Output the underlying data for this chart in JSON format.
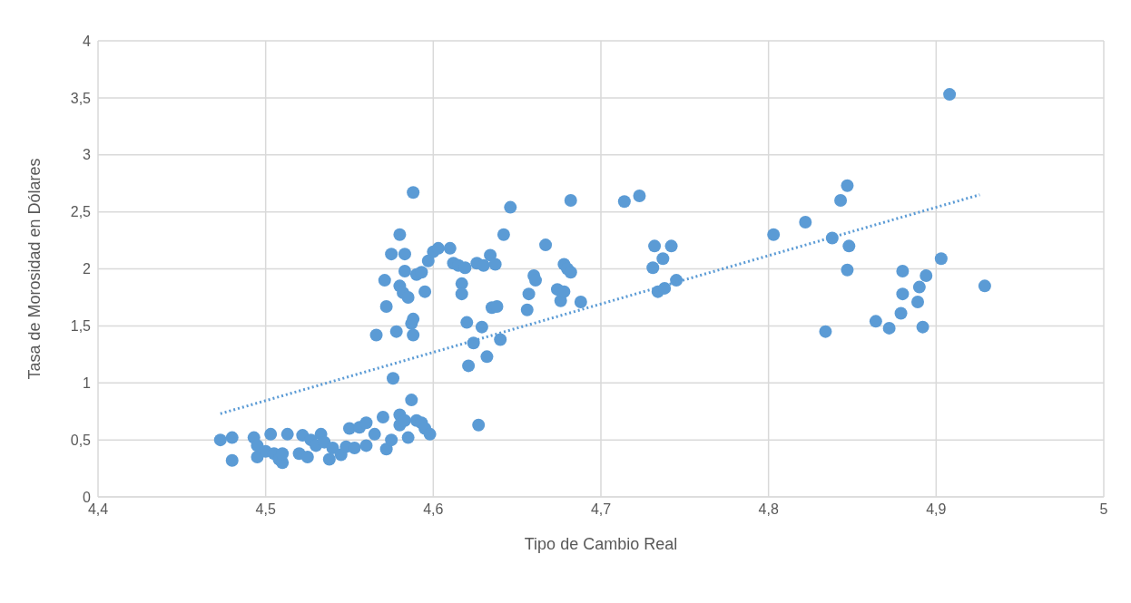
{
  "chart_data": {
    "type": "scatter",
    "xlabel": "Tipo de Cambio Real",
    "ylabel": "Tasa de Morosidad en Dólares",
    "xlim": [
      4.4,
      5
    ],
    "xticks": [
      {
        "value": 4.4,
        "label": "4,4"
      },
      {
        "value": 4.5,
        "label": "4,5"
      },
      {
        "value": 4.6,
        "label": "4,6"
      },
      {
        "value": 4.7,
        "label": "4,7"
      },
      {
        "value": 4.8,
        "label": "4,8"
      },
      {
        "value": 4.9,
        "label": "4,9"
      },
      5
    ],
    "ylim": [
      0,
      4
    ],
    "yticks": [
      0,
      {
        "value": 0.5,
        "label": "0,5"
      },
      1,
      {
        "value": 1.5,
        "label": "1,5"
      },
      2,
      {
        "value": 2.5,
        "label": "2,5"
      },
      3,
      {
        "value": 3.5,
        "label": "3,5"
      },
      4
    ],
    "grid": true,
    "legend": false,
    "series": [
      {
        "color": "#5b9bd5",
        "marker": "circle",
        "x": [
          4.473,
          4.48,
          4.48,
          4.493,
          4.495,
          4.495,
          4.5,
          4.503,
          4.505,
          4.508,
          4.51,
          4.51,
          4.513,
          4.52,
          4.522,
          4.525,
          4.527,
          4.53,
          4.533,
          4.535,
          4.538,
          4.54,
          4.545,
          4.548,
          4.55,
          4.553,
          4.556,
          4.56,
          4.56,
          4.565,
          4.57,
          4.572,
          4.575,
          4.58,
          4.58,
          4.583,
          4.585,
          4.587,
          4.59,
          4.593,
          4.595,
          4.598,
          4.627,
          4.576,
          4.566,
          4.571,
          4.572,
          4.575,
          4.578,
          4.58,
          4.58,
          4.582,
          4.583,
          4.583,
          4.585,
          4.587,
          4.588,
          4.588,
          4.588,
          4.59,
          4.593,
          4.595,
          4.597,
          4.6,
          4.603,
          4.61,
          4.612,
          4.615,
          4.617,
          4.617,
          4.619,
          4.62,
          4.621,
          4.624,
          4.626,
          4.629,
          4.63,
          4.632,
          4.634,
          4.635,
          4.637,
          4.638,
          4.64,
          4.642,
          4.646,
          4.656,
          4.657,
          4.66,
          4.661,
          4.667,
          4.674,
          4.676,
          4.678,
          4.678,
          4.68,
          4.682,
          4.682,
          4.688,
          4.714,
          4.723,
          4.731,
          4.732,
          4.734,
          4.737,
          4.738,
          4.742,
          4.745,
          4.803,
          4.822,
          4.838,
          4.843,
          4.847,
          4.848,
          4.847,
          4.834,
          4.864,
          4.872,
          4.879,
          4.88,
          4.88,
          4.889,
          4.89,
          4.892,
          4.894,
          4.903,
          4.908,
          4.929
        ],
        "values": [
          0.5,
          0.52,
          0.32,
          0.52,
          0.45,
          0.35,
          0.4,
          0.55,
          0.38,
          0.33,
          0.3,
          0.38,
          0.55,
          0.38,
          0.54,
          0.35,
          0.5,
          0.45,
          0.55,
          0.48,
          0.33,
          0.43,
          0.37,
          0.44,
          0.6,
          0.43,
          0.61,
          0.65,
          0.45,
          0.55,
          0.7,
          0.42,
          0.5,
          0.72,
          0.63,
          0.67,
          0.52,
          0.85,
          0.67,
          0.65,
          0.6,
          0.55,
          0.63,
          1.04,
          1.42,
          1.9,
          1.67,
          2.13,
          1.45,
          2.3,
          1.85,
          1.79,
          2.13,
          1.98,
          1.75,
          1.52,
          1.42,
          1.56,
          2.67,
          1.95,
          1.97,
          1.8,
          2.07,
          2.15,
          2.18,
          2.18,
          2.05,
          2.03,
          1.87,
          1.78,
          2.01,
          1.53,
          1.15,
          1.35,
          2.05,
          1.49,
          2.03,
          1.23,
          2.12,
          1.66,
          2.04,
          1.67,
          1.38,
          2.3,
          2.54,
          1.64,
          1.78,
          1.94,
          1.9,
          2.21,
          1.82,
          1.72,
          1.8,
          2.04,
          2.0,
          2.6,
          1.97,
          1.71,
          2.59,
          2.64,
          2.01,
          2.2,
          1.8,
          2.09,
          1.83,
          2.2,
          1.9,
          2.3,
          2.41,
          2.27,
          2.6,
          2.73,
          2.2,
          1.99,
          1.45,
          1.54,
          1.48,
          1.61,
          1.98,
          1.78,
          1.71,
          1.84,
          1.49,
          1.94,
          2.09,
          3.53,
          1.85
        ]
      },
      {
        "type": "line",
        "color": "#5b9bd5",
        "marker": "none",
        "line_style": "dotted",
        "x": [
          4.473,
          4.926
        ],
        "values": [
          0.73,
          2.65
        ]
      }
    ]
  }
}
